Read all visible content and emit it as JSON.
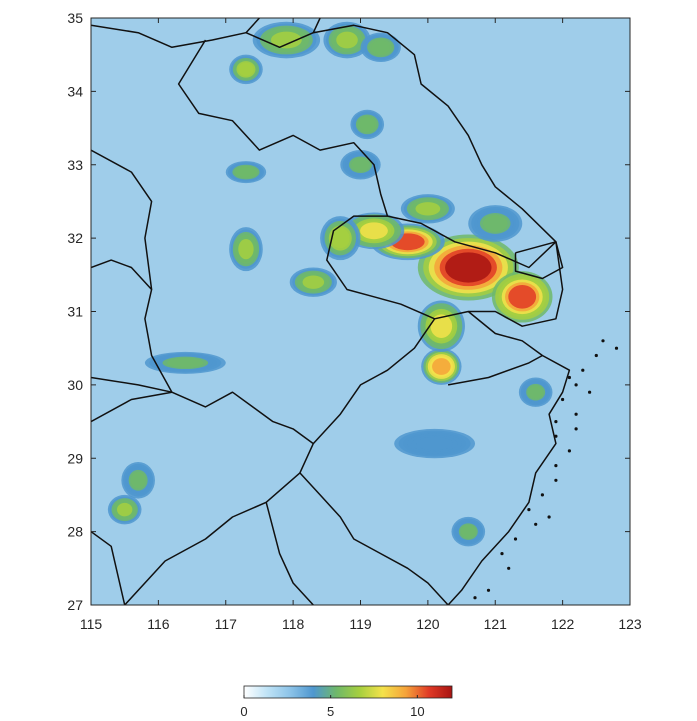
{
  "chart_data": {
    "type": "heatmap",
    "title": "",
    "xlabel": "",
    "ylabel": "",
    "xlim": [
      115,
      123
    ],
    "ylim": [
      27,
      35
    ],
    "x_ticks": [
      "115",
      "116",
      "117",
      "118",
      "119",
      "120",
      "121",
      "122",
      "123"
    ],
    "y_ticks": [
      "35",
      "34",
      "33",
      "32",
      "31",
      "30",
      "29",
      "28",
      "27"
    ],
    "colorbar": {
      "range": [
        0,
        12
      ],
      "ticks": [
        "0",
        "5",
        "10"
      ],
      "tick_values": [
        0,
        5,
        10
      ],
      "colors": [
        "#ffffff",
        "#bfe3f6",
        "#8cc3e8",
        "#4f97cf",
        "#6fb86a",
        "#a6cf3f",
        "#f4e24b",
        "#f5a33a",
        "#e03a26",
        "#a81412"
      ]
    },
    "hotspots": [
      {
        "lon": 120.6,
        "lat": 31.6,
        "value": 12,
        "rx": 0.75,
        "ry": 0.45
      },
      {
        "lon": 121.4,
        "lat": 31.2,
        "value": 11,
        "rx": 0.45,
        "ry": 0.35
      },
      {
        "lon": 119.7,
        "lat": 31.95,
        "value": 10,
        "rx": 0.55,
        "ry": 0.25
      },
      {
        "lon": 120.2,
        "lat": 30.25,
        "value": 9.5,
        "rx": 0.3,
        "ry": 0.25
      },
      {
        "lon": 120.2,
        "lat": 30.8,
        "value": 8,
        "rx": 0.35,
        "ry": 0.35
      },
      {
        "lon": 119.2,
        "lat": 32.1,
        "value": 8,
        "rx": 0.45,
        "ry": 0.25
      },
      {
        "lon": 118.7,
        "lat": 32.0,
        "value": 6.5,
        "rx": 0.3,
        "ry": 0.3
      },
      {
        "lon": 118.3,
        "lat": 31.4,
        "value": 6,
        "rx": 0.35,
        "ry": 0.2
      },
      {
        "lon": 117.3,
        "lat": 31.85,
        "value": 6,
        "rx": 0.25,
        "ry": 0.3
      },
      {
        "lon": 117.3,
        "lat": 34.3,
        "value": 6.5,
        "rx": 0.25,
        "ry": 0.2
      },
      {
        "lon": 117.9,
        "lat": 34.7,
        "value": 6,
        "rx": 0.5,
        "ry": 0.25
      },
      {
        "lon": 118.8,
        "lat": 34.7,
        "value": 6,
        "rx": 0.35,
        "ry": 0.25
      },
      {
        "lon": 119.3,
        "lat": 34.6,
        "value": 5.5,
        "rx": 0.3,
        "ry": 0.2
      },
      {
        "lon": 119.1,
        "lat": 33.55,
        "value": 5.5,
        "rx": 0.25,
        "ry": 0.2
      },
      {
        "lon": 117.3,
        "lat": 32.9,
        "value": 5.5,
        "rx": 0.3,
        "ry": 0.15
      },
      {
        "lon": 119.0,
        "lat": 33.0,
        "value": 5,
        "rx": 0.3,
        "ry": 0.2
      },
      {
        "lon": 115.5,
        "lat": 28.3,
        "value": 6,
        "rx": 0.25,
        "ry": 0.2
      },
      {
        "lon": 115.7,
        "lat": 28.7,
        "value": 5,
        "rx": 0.25,
        "ry": 0.25
      },
      {
        "lon": 120.0,
        "lat": 32.4,
        "value": 6,
        "rx": 0.4,
        "ry": 0.2
      },
      {
        "lon": 121.0,
        "lat": 32.2,
        "value": 5,
        "rx": 0.4,
        "ry": 0.25
      },
      {
        "lon": 120.6,
        "lat": 28.0,
        "value": 5,
        "rx": 0.25,
        "ry": 0.2
      },
      {
        "lon": 116.4,
        "lat": 30.3,
        "value": 5,
        "rx": 0.6,
        "ry": 0.15
      },
      {
        "lon": 120.1,
        "lat": 29.2,
        "value": 4.5,
        "rx": 0.6,
        "ry": 0.2
      },
      {
        "lon": 121.6,
        "lat": 29.9,
        "value": 5,
        "rx": 0.25,
        "ry": 0.2
      }
    ],
    "boundaries": [
      [
        [
          115,
          34.9
        ],
        [
          115.7,
          34.8
        ],
        [
          116.2,
          34.6
        ],
        [
          116.8,
          34.7
        ],
        [
          117.3,
          34.8
        ],
        [
          117.8,
          34.6
        ],
        [
          118.3,
          34.8
        ],
        [
          118.9,
          34.9
        ],
        [
          119.4,
          34.8
        ],
        [
          119.8,
          34.5
        ],
        [
          119.9,
          34.1
        ],
        [
          120.3,
          33.8
        ],
        [
          120.6,
          33.4
        ],
        [
          120.8,
          33.0
        ],
        [
          121.0,
          32.7
        ],
        [
          121.4,
          32.4
        ],
        [
          121.9,
          31.95
        ]
      ],
      [
        [
          121.9,
          31.95
        ],
        [
          121.5,
          31.6
        ],
        [
          121.0,
          31.8
        ],
        [
          120.4,
          31.95
        ],
        [
          119.9,
          32.2
        ],
        [
          119.4,
          32.3
        ],
        [
          118.9,
          32.3
        ],
        [
          118.6,
          32.1
        ],
        [
          118.5,
          31.7
        ],
        [
          118.8,
          31.3
        ],
        [
          119.2,
          31.2
        ],
        [
          119.6,
          31.1
        ],
        [
          120.1,
          30.9
        ],
        [
          120.6,
          31.0
        ],
        [
          121.0,
          31.0
        ],
        [
          121.4,
          30.8
        ],
        [
          121.9,
          30.9
        ],
        [
          122.0,
          31.3
        ],
        [
          121.9,
          31.95
        ]
      ],
      [
        [
          120.6,
          31.0
        ],
        [
          121.0,
          30.7
        ],
        [
          121.4,
          30.6
        ],
        [
          121.7,
          30.4
        ],
        [
          122.1,
          30.2
        ],
        [
          122.0,
          29.9
        ],
        [
          121.8,
          29.6
        ],
        [
          121.9,
          29.2
        ],
        [
          121.6,
          28.8
        ],
        [
          121.5,
          28.4
        ],
        [
          121.2,
          28.0
        ],
        [
          120.8,
          27.6
        ],
        [
          120.5,
          27.2
        ],
        [
          120.3,
          27.0
        ]
      ],
      [
        [
          120.1,
          30.9
        ],
        [
          119.8,
          30.5
        ],
        [
          119.4,
          30.2
        ],
        [
          119.0,
          30.0
        ],
        [
          118.7,
          29.6
        ],
        [
          118.3,
          29.2
        ],
        [
          118.1,
          28.8
        ],
        [
          118.4,
          28.5
        ],
        [
          118.7,
          28.2
        ],
        [
          118.9,
          27.9
        ],
        [
          119.3,
          27.7
        ],
        [
          119.7,
          27.5
        ],
        [
          120.0,
          27.3
        ],
        [
          120.3,
          27.0
        ]
      ],
      [
        [
          115,
          30.1
        ],
        [
          115.7,
          30.0
        ],
        [
          116.2,
          29.9
        ],
        [
          116.7,
          29.7
        ],
        [
          117.1,
          29.9
        ],
        [
          117.4,
          29.7
        ],
        [
          117.7,
          29.5
        ],
        [
          118.0,
          29.4
        ],
        [
          118.3,
          29.2
        ]
      ],
      [
        [
          115,
          29.5
        ],
        [
          115.6,
          29.8
        ],
        [
          116.2,
          29.9
        ]
      ],
      [
        [
          116.2,
          29.9
        ],
        [
          115.9,
          30.4
        ],
        [
          115.8,
          30.9
        ],
        [
          115.9,
          31.3
        ],
        [
          115.6,
          31.6
        ],
        [
          115.3,
          31.7
        ],
        [
          115,
          31.6
        ]
      ],
      [
        [
          115,
          33.2
        ],
        [
          115.6,
          32.9
        ],
        [
          115.9,
          32.5
        ],
        [
          115.8,
          32.0
        ],
        [
          115.9,
          31.3
        ]
      ],
      [
        [
          116.7,
          34.7
        ],
        [
          116.3,
          34.1
        ],
        [
          116.6,
          33.7
        ],
        [
          117.1,
          33.6
        ],
        [
          117.5,
          33.2
        ],
        [
          118.0,
          33.4
        ],
        [
          118.4,
          33.2
        ],
        [
          118.9,
          33.3
        ],
        [
          119.2,
          33.0
        ],
        [
          119.3,
          32.6
        ],
        [
          119.4,
          32.3
        ]
      ],
      [
        [
          117.3,
          34.8
        ],
        [
          117.5,
          35.0
        ]
      ],
      [
        [
          118.3,
          34.8
        ],
        [
          118.4,
          35.0
        ]
      ],
      [
        [
          115.5,
          27.0
        ],
        [
          116.1,
          27.6
        ],
        [
          116.7,
          27.9
        ],
        [
          117.1,
          28.2
        ],
        [
          117.6,
          28.4
        ],
        [
          118.1,
          28.8
        ]
      ],
      [
        [
          115,
          28.0
        ],
        [
          115.3,
          27.8
        ],
        [
          115.5,
          27.0
        ]
      ],
      [
        [
          117.6,
          28.4
        ],
        [
          117.8,
          27.7
        ],
        [
          118.0,
          27.3
        ],
        [
          118.3,
          27.0
        ]
      ],
      [
        [
          121.3,
          31.8
        ],
        [
          121.9,
          31.95
        ],
        [
          122.0,
          31.6
        ],
        [
          121.7,
          31.45
        ],
        [
          121.3,
          31.55
        ],
        [
          121.3,
          31.8
        ]
      ],
      [
        [
          120.3,
          30.0
        ],
        [
          120.9,
          30.1
        ],
        [
          121.5,
          30.3
        ],
        [
          121.7,
          30.4
        ]
      ]
    ],
    "islands": [
      [
        122.1,
        30.1
      ],
      [
        122.2,
        30.0
      ],
      [
        122.3,
        30.2
      ],
      [
        122.0,
        29.8
      ],
      [
        122.4,
        29.9
      ],
      [
        122.2,
        29.6
      ],
      [
        121.9,
        29.3
      ],
      [
        122.1,
        29.1
      ],
      [
        121.9,
        28.9
      ],
      [
        121.7,
        28.5
      ],
      [
        121.5,
        28.3
      ],
      [
        121.9,
        28.7
      ],
      [
        121.3,
        27.9
      ],
      [
        121.1,
        27.7
      ],
      [
        121.2,
        27.5
      ],
      [
        120.9,
        27.2
      ],
      [
        120.7,
        27.1
      ],
      [
        122.5,
        30.4
      ],
      [
        122.6,
        30.6
      ],
      [
        122.8,
        30.5
      ],
      [
        121.9,
        29.5
      ],
      [
        121.6,
        28.1
      ],
      [
        122.2,
        29.4
      ],
      [
        121.8,
        28.2
      ]
    ]
  }
}
